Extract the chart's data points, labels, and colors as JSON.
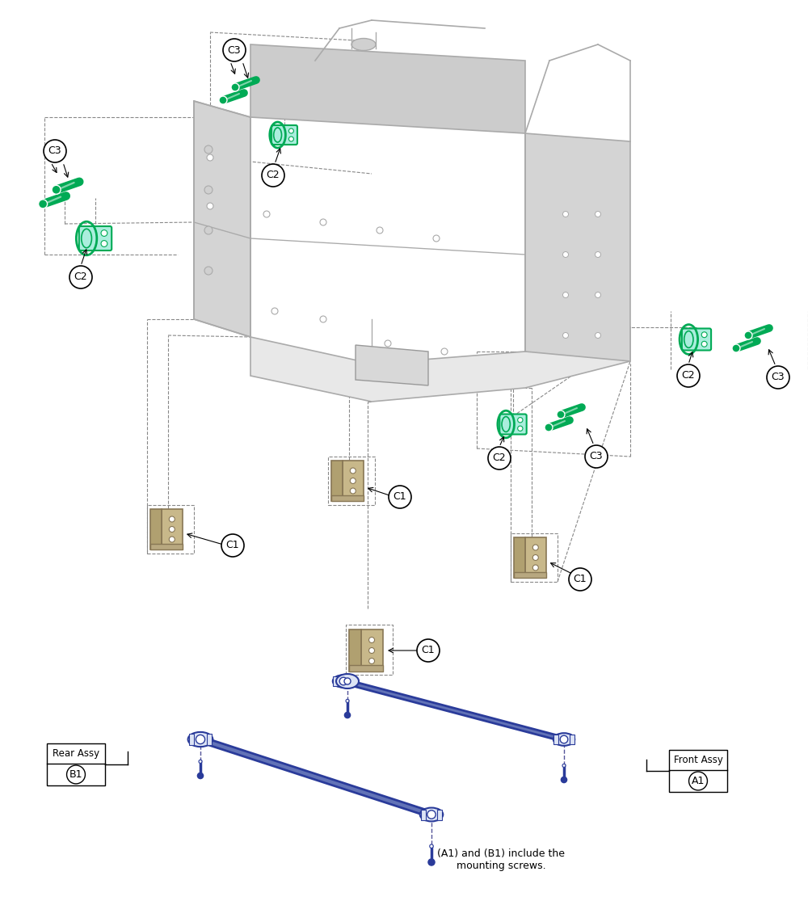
{
  "bg_color": "#ffffff",
  "blue_dark": "#2233aa",
  "blue_mid": "#4455bb",
  "blue_light": "#99aadd",
  "green": "#00aa55",
  "green_light": "#44cc88",
  "frame_edge": "#999999",
  "frame_fill": "#e8e8e8",
  "frame_fill2": "#d8d8d8",
  "tan_edge": "#887755",
  "tan_fill": "#c8b88a",
  "note_text": "(A1) and (B1) include the\nmounting screws.",
  "label_A1": "A1",
  "label_B1": "B1",
  "label_front": "Front Assy",
  "label_rear": "Rear Assy",
  "label_C1": "C1",
  "label_C2": "C2",
  "label_C3": "C3"
}
